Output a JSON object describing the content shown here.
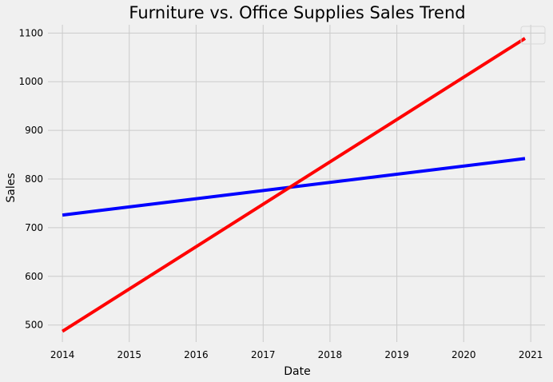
{
  "chart_data": {
    "type": "line",
    "title": "Furniture vs. Office Supplies Sales Trend",
    "xlabel": "Date",
    "ylabel": "Sales",
    "x_ticks": [
      "2014",
      "2015",
      "2016",
      "2017",
      "2018",
      "2019",
      "2020",
      "2021"
    ],
    "y_ticks": [
      "500",
      "600",
      "700",
      "800",
      "900",
      "1000",
      "1100"
    ],
    "xlim": [
      "2013-10-14",
      "2021-03-20"
    ],
    "ylim": [
      465,
      1117
    ],
    "grid": true,
    "legend": {
      "placement": "top-right",
      "entries": []
    },
    "series": [
      {
        "color": "#0000ff",
        "points": [
          {
            "x": "2014-01-01",
            "y": 726
          },
          {
            "x": "2020-12-01",
            "y": 842
          }
        ]
      },
      {
        "color": "#ff0000",
        "points": [
          {
            "x": "2014-01-01",
            "y": 487
          },
          {
            "x": "2020-12-01",
            "y": 1089
          }
        ]
      }
    ]
  }
}
